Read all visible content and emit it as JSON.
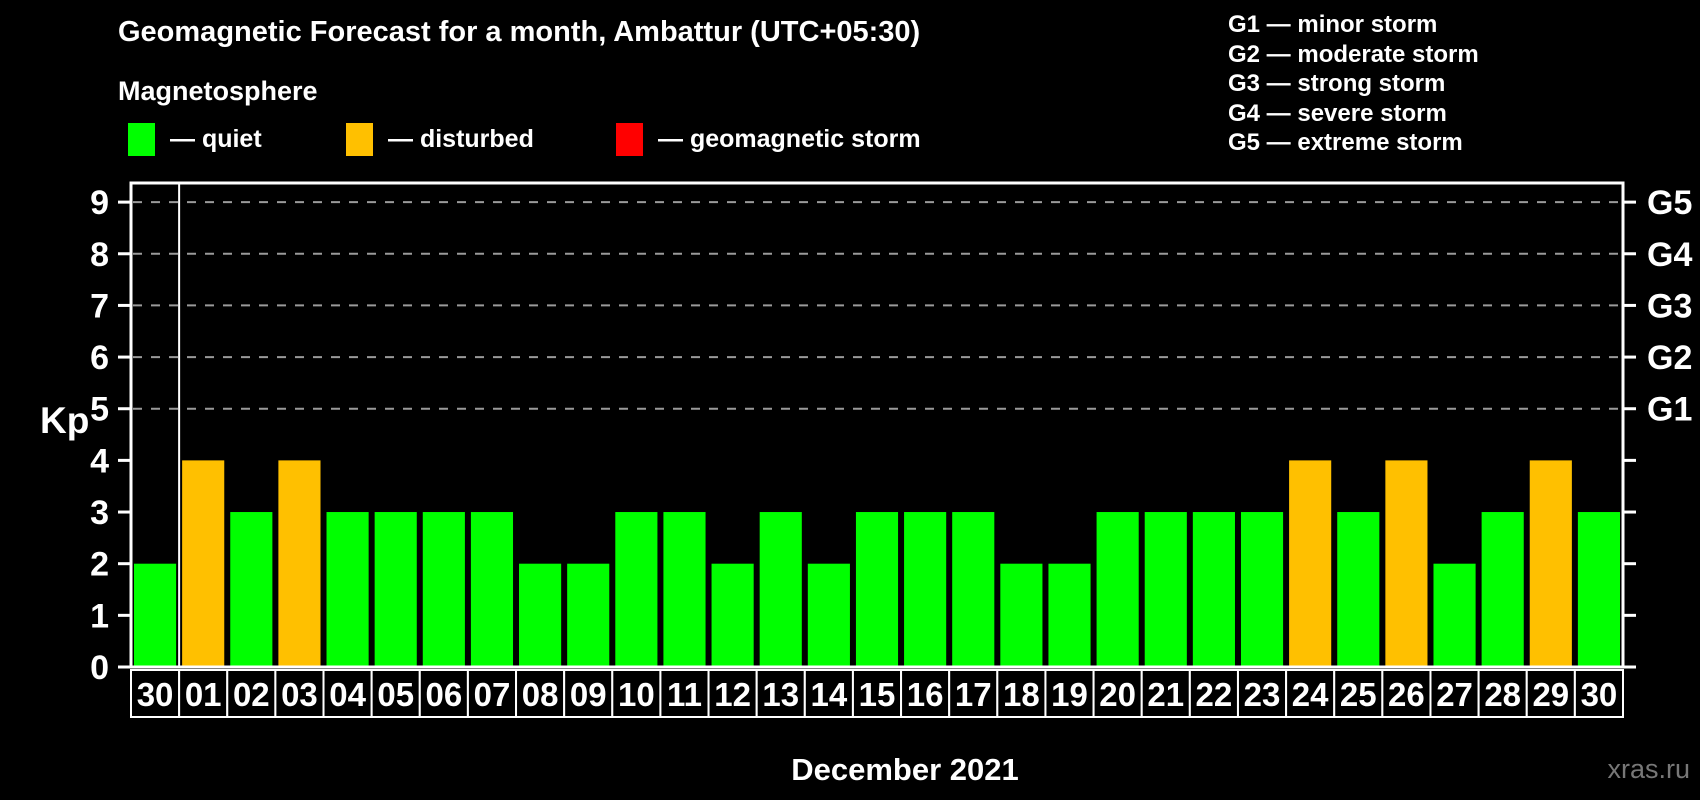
{
  "title": "Geomagnetic Forecast for a month, Ambattur (UTC+05:30)",
  "subtitle": "Magnetosphere",
  "status_legend": {
    "items": [
      {
        "label": "— quiet",
        "status": "quiet",
        "color": "#00ff00"
      },
      {
        "label": "— disturbed",
        "status": "disturbed",
        "color": "#ffc000"
      },
      {
        "label": "— geomagnetic storm",
        "status": "storm",
        "color": "#ff0000"
      }
    ]
  },
  "storm_scale_legend": {
    "items": [
      "G1 — minor storm",
      "G2 — moderate storm",
      "G3 — strong storm",
      "G4 — severe storm",
      "G5 — extreme storm"
    ]
  },
  "y_axis": {
    "label": "Kp",
    "ticks": [
      0,
      1,
      2,
      3,
      4,
      5,
      6,
      7,
      8,
      9
    ]
  },
  "right_axis": {
    "labels": [
      {
        "value": 9,
        "text": "G5"
      },
      {
        "value": 8,
        "text": "G4"
      },
      {
        "value": 7,
        "text": "G3"
      },
      {
        "value": 6,
        "text": "G2"
      },
      {
        "value": 5,
        "text": "G1"
      }
    ]
  },
  "x_axis": {
    "label": "December 2021"
  },
  "watermark": "xras.ru",
  "colors": {
    "background": "#000000",
    "text": "#ffffff",
    "grid": "#9a9a9a",
    "axis": "#ffffff",
    "watermark": "#777777",
    "quiet": "#00ff00",
    "disturbed": "#ffc000",
    "storm": "#ff0000"
  },
  "chart_data": {
    "type": "bar",
    "title": "Geomagnetic Forecast for a month, Ambattur (UTC+05:30)",
    "xlabel": "December 2021",
    "ylabel": "Kp",
    "categories": [
      "30",
      "01",
      "02",
      "03",
      "04",
      "05",
      "06",
      "07",
      "08",
      "09",
      "10",
      "11",
      "12",
      "13",
      "14",
      "15",
      "16",
      "17",
      "18",
      "19",
      "20",
      "21",
      "22",
      "23",
      "24",
      "25",
      "26",
      "27",
      "28",
      "29",
      "30"
    ],
    "values": [
      2,
      4,
      3,
      4,
      3,
      3,
      3,
      3,
      2,
      2,
      3,
      3,
      2,
      3,
      2,
      3,
      3,
      3,
      2,
      2,
      3,
      3,
      3,
      3,
      4,
      3,
      4,
      2,
      3,
      4,
      3
    ],
    "statuses": [
      "quiet",
      "disturbed",
      "quiet",
      "disturbed",
      "quiet",
      "quiet",
      "quiet",
      "quiet",
      "quiet",
      "quiet",
      "quiet",
      "quiet",
      "quiet",
      "quiet",
      "quiet",
      "quiet",
      "quiet",
      "quiet",
      "quiet",
      "quiet",
      "quiet",
      "quiet",
      "quiet",
      "quiet",
      "disturbed",
      "quiet",
      "disturbed",
      "quiet",
      "quiet",
      "disturbed",
      "quiet"
    ],
    "ylim": [
      0,
      9.37
    ],
    "gridlines_at": [
      5,
      6,
      7,
      8,
      9
    ],
    "grid": "dashed horizontal lines at storm levels G1–G5 only",
    "separator_after_index": 0,
    "legend_position": "top"
  }
}
